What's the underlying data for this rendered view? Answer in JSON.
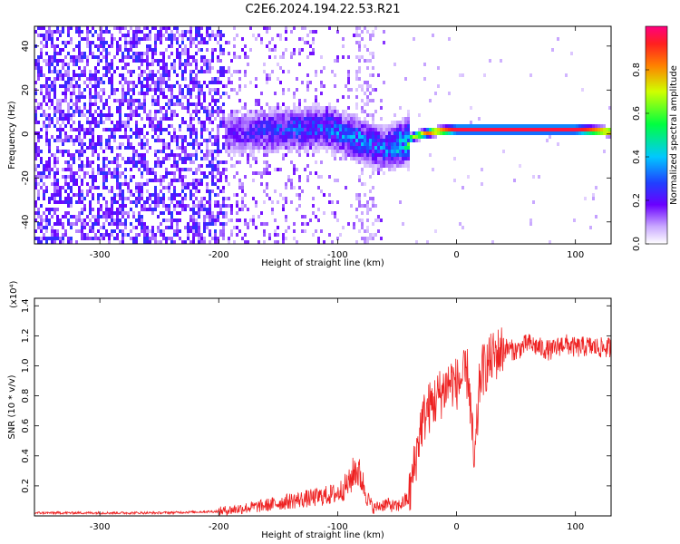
{
  "figure_title": "C2E6.2024.194.22.53.R21",
  "colors": {
    "snr_line": "#ee2222",
    "spectrum_low": "#f0e6ff",
    "spectrum_mid": "#6a00ff",
    "spectrum_high": "#ff0060"
  },
  "chart_data": [
    {
      "type": "heatmap",
      "title": "C2E6.2024.194.22.53.R21",
      "xlabel": "Height of straight line (km)",
      "ylabel": "Frequency (Hz)",
      "xlim": [
        -355,
        130
      ],
      "ylim": [
        -50,
        49
      ],
      "x_ticks": [
        -300,
        -200,
        -100,
        0,
        100
      ],
      "x_tick_labels": [
        "-300",
        "-200",
        "-100",
        "0",
        "100"
      ],
      "y_ticks": [
        -40,
        -20,
        0,
        20,
        40
      ],
      "y_tick_labels": [
        "-40",
        "-20",
        "0",
        "20",
        "40"
      ],
      "grid": false,
      "colorbar": {
        "label": "Normalized spectral amplitude",
        "range": [
          0.0,
          1.0
        ],
        "ticks": [
          0.0,
          0.2,
          0.4,
          0.6,
          0.8
        ],
        "tick_labels": [
          "0.0",
          "0.2",
          "0.4",
          "0.6",
          "0.8"
        ],
        "colormap": "rainbow (white-violet-blue-cyan-green-yellow-red-magenta)"
      },
      "dominant_ridge": {
        "description": "peak frequency track",
        "x": [
          -190,
          -150,
          -110,
          -80,
          -60,
          -45,
          -35,
          -20,
          0,
          50,
          100,
          130
        ],
        "frequency": [
          0,
          2,
          3,
          -3,
          -7,
          -4,
          -1,
          1,
          2,
          2,
          2,
          1
        ],
        "amplitude": [
          0.2,
          0.3,
          0.35,
          0.4,
          0.35,
          0.5,
          0.7,
          0.9,
          0.95,
          0.95,
          0.95,
          0.9
        ]
      }
    },
    {
      "type": "line",
      "xlabel": "Height of straight line (km)",
      "ylabel": "SNR (10 * v/v)",
      "y_multiplier_label": "(x10⁴)",
      "xlim": [
        -355,
        130
      ],
      "ylim": [
        0,
        1.45
      ],
      "x_ticks": [
        -300,
        -200,
        -100,
        0,
        100
      ],
      "x_tick_labels": [
        "-300",
        "-200",
        "-100",
        "0",
        "100"
      ],
      "y_ticks": [
        0.2,
        0.4,
        0.6,
        0.8,
        1.0,
        1.2,
        1.4
      ],
      "y_tick_labels": [
        "0.2",
        "0.4",
        "0.6",
        "0.8",
        "1.0",
        "1.2",
        "1.4"
      ],
      "grid": false,
      "series": [
        {
          "x": [
            -355,
            -300,
            -250,
            -200,
            -180,
            -160,
            -140,
            -120,
            -100,
            -90,
            -85,
            -80,
            -75,
            -70,
            -60,
            -50,
            -40,
            -35,
            -30,
            -25,
            -20,
            -15,
            -10,
            -5,
            0,
            10,
            15,
            20,
            30,
            40,
            50,
            60,
            70,
            80,
            90,
            100,
            110,
            120,
            130
          ],
          "y": [
            0.02,
            0.02,
            0.02,
            0.03,
            0.05,
            0.07,
            0.1,
            0.12,
            0.15,
            0.22,
            0.32,
            0.25,
            0.12,
            0.05,
            0.08,
            0.06,
            0.12,
            0.35,
            0.6,
            0.7,
            0.75,
            0.8,
            0.85,
            0.9,
            0.88,
            0.95,
            0.3,
            0.95,
            1.05,
            1.12,
            1.1,
            1.15,
            1.12,
            1.1,
            1.15,
            1.12,
            1.13,
            1.12,
            1.12
          ]
        }
      ]
    }
  ]
}
